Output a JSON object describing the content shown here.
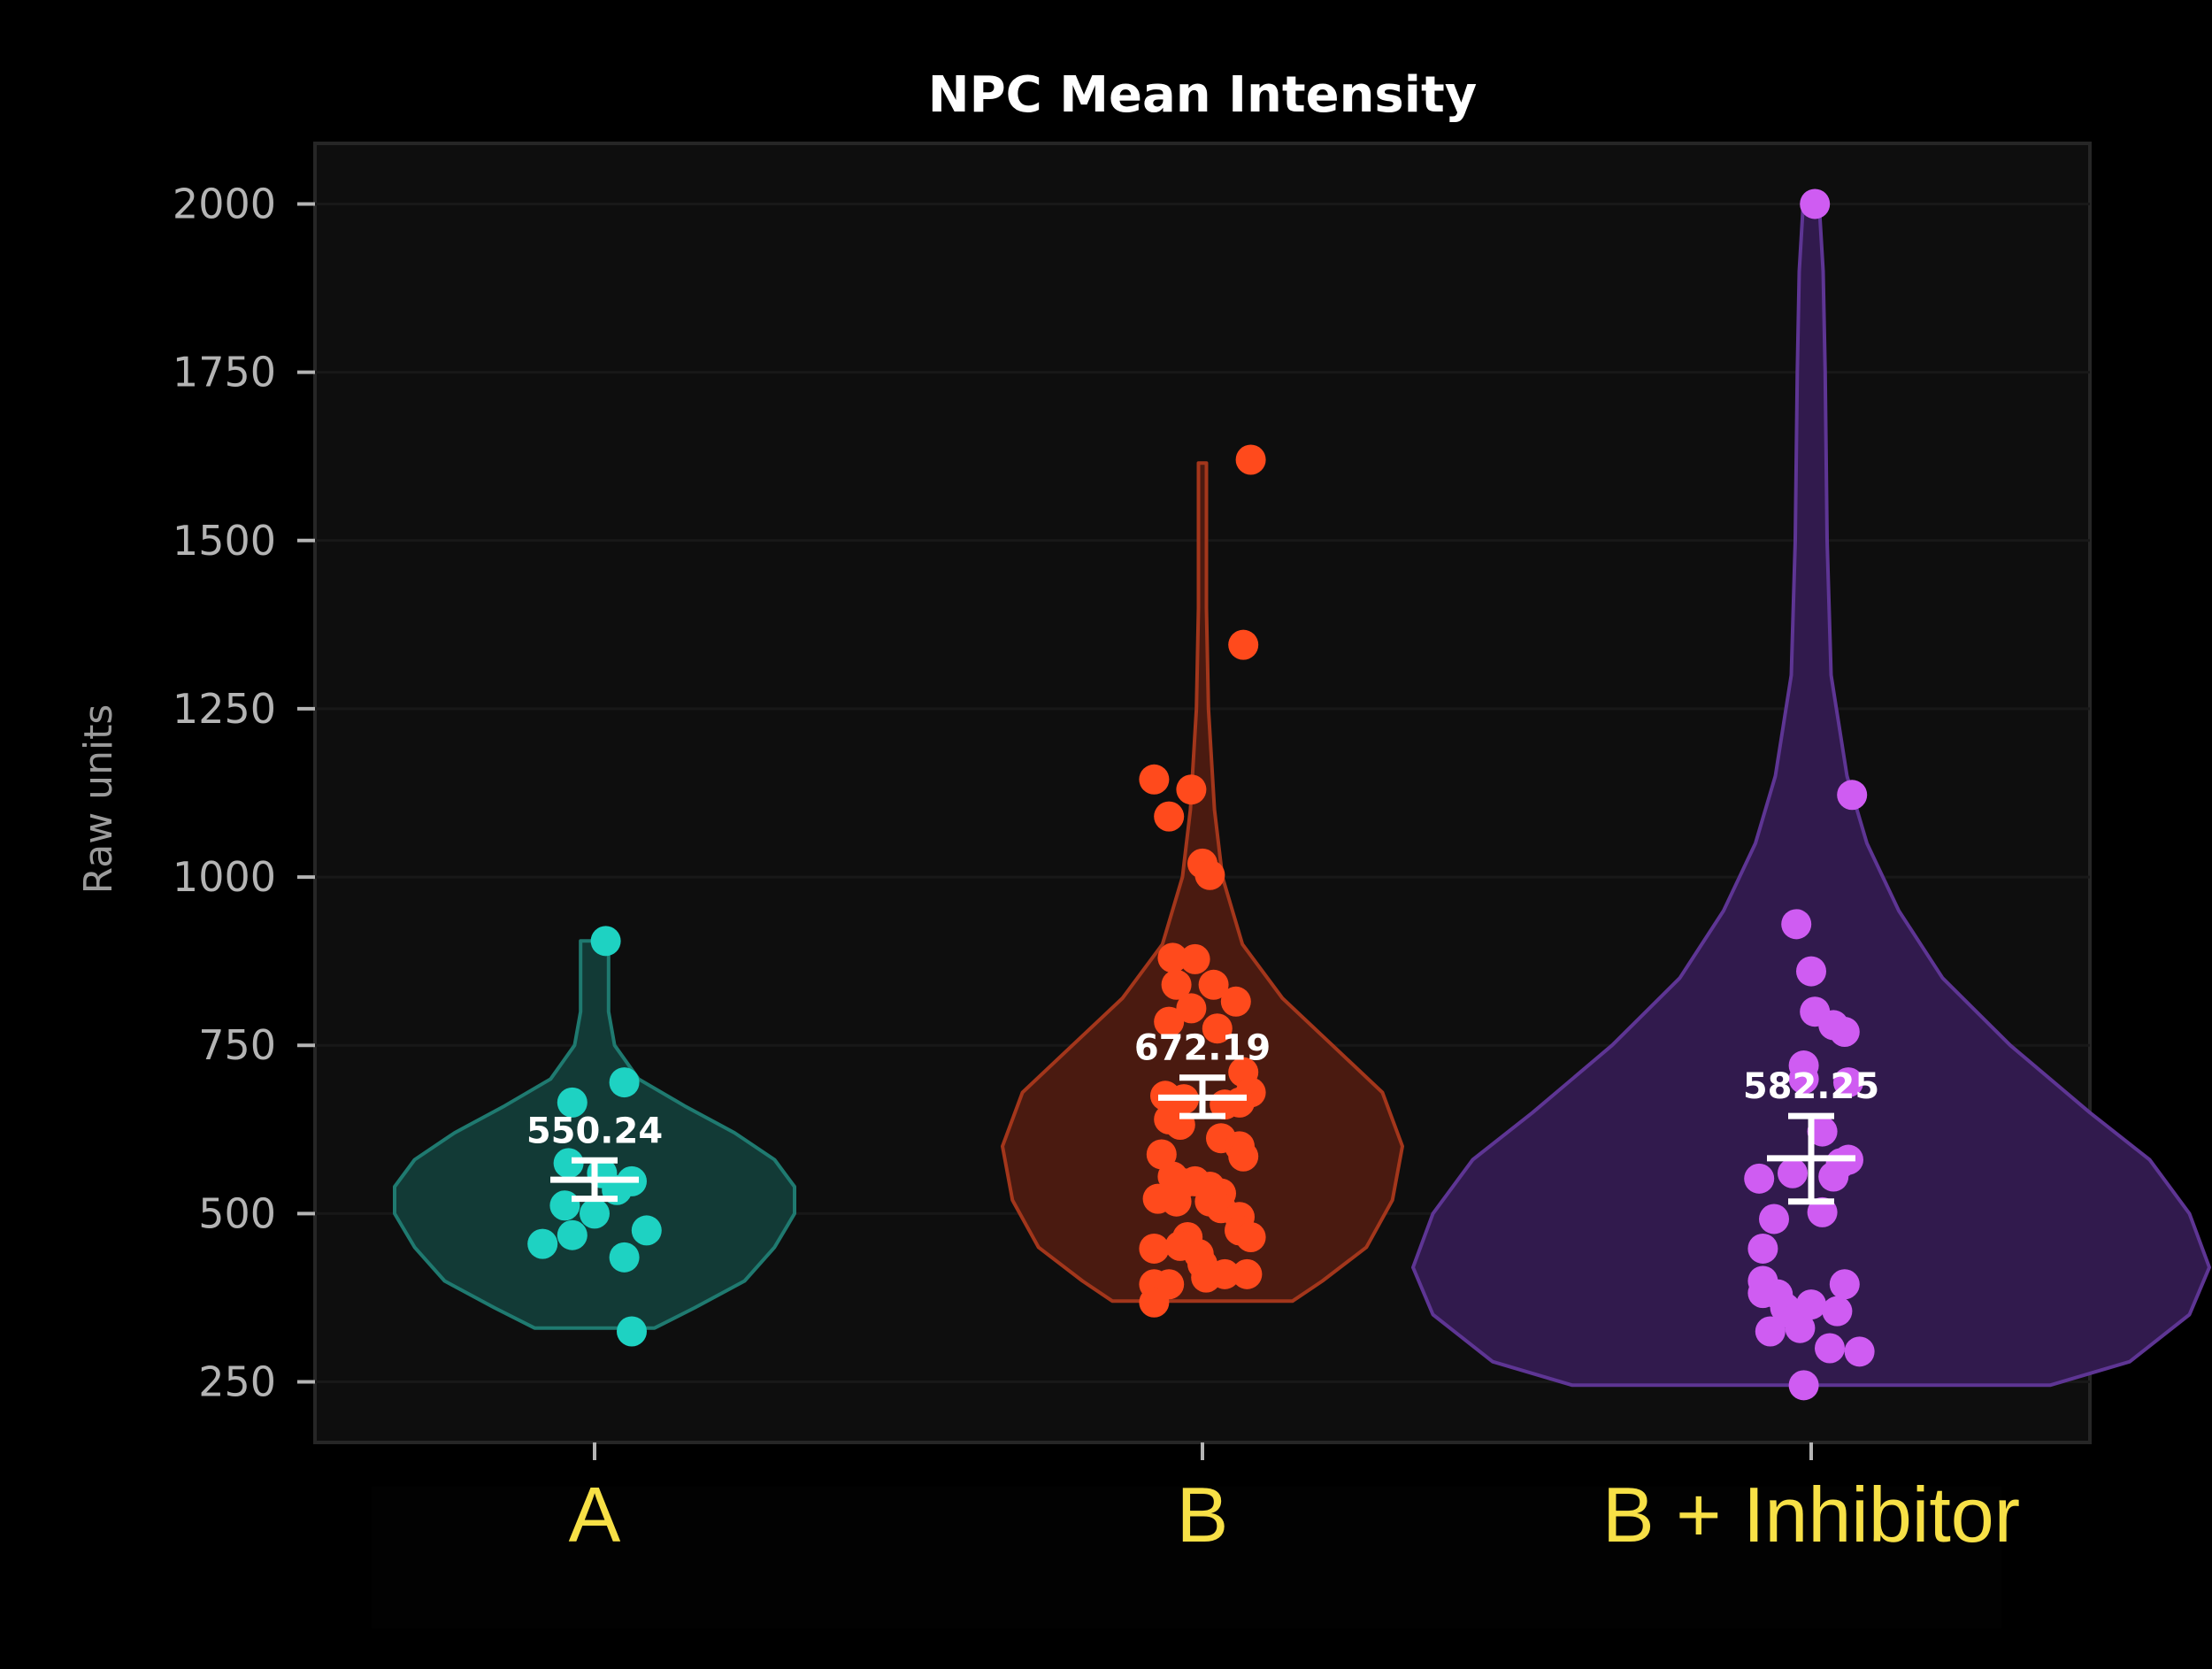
{
  "chart_data": {
    "type": "violin",
    "title": "NPC Mean Intensity",
    "xlabel": "",
    "ylabel": "Raw units",
    "ylim": [
      160,
      2090
    ],
    "yticks": [
      250,
      500,
      750,
      1000,
      1250,
      1500,
      1750,
      2000
    ],
    "ytick_labels": [
      "250",
      "500",
      "750",
      "1000",
      "1250",
      "1500",
      "1750",
      "2000"
    ],
    "categories": [
      "A",
      "B",
      "B + Inhibitor"
    ],
    "series": [
      {
        "name": "A",
        "color": "#1ed2c2",
        "fill": "#123a36",
        "edge": "#1f7a70",
        "mean": 550.24,
        "mean_label": "550.24",
        "sem": [
          522,
          579
        ],
        "range": [
          330,
          905
        ],
        "density": [
          [
            330,
            0.3
          ],
          [
            360,
            0.5
          ],
          [
            400,
            0.75
          ],
          [
            450,
            0.9
          ],
          [
            500,
            1.0
          ],
          [
            540,
            1.0
          ],
          [
            580,
            0.9
          ],
          [
            620,
            0.7
          ],
          [
            660,
            0.45
          ],
          [
            700,
            0.22
          ],
          [
            750,
            0.1
          ],
          [
            800,
            0.07
          ],
          [
            860,
            0.07
          ],
          [
            905,
            0.07
          ]
        ],
        "points": [
          [
            0.03,
            905
          ],
          [
            0.08,
            695
          ],
          [
            -0.06,
            665
          ],
          [
            -0.07,
            575
          ],
          [
            0.02,
            560
          ],
          [
            0.1,
            548
          ],
          [
            0.06,
            535
          ],
          [
            -0.08,
            512
          ],
          [
            0.0,
            500
          ],
          [
            0.14,
            475
          ],
          [
            -0.06,
            468
          ],
          [
            -0.14,
            455
          ],
          [
            0.08,
            435
          ],
          [
            0.1,
            325
          ]
        ]
      },
      {
        "name": "B",
        "color": "#ff4a1c",
        "fill": "#4a1a10",
        "edge": "#a3361b",
        "mean": 672.19,
        "mean_label": "672.19",
        "sem": [
          645,
          702
        ],
        "range": [
          370,
          1615
        ],
        "density": [
          [
            370,
            0.45
          ],
          [
            400,
            0.6
          ],
          [
            450,
            0.82
          ],
          [
            520,
            0.95
          ],
          [
            600,
            1.0
          ],
          [
            680,
            0.9
          ],
          [
            750,
            0.65
          ],
          [
            820,
            0.4
          ],
          [
            900,
            0.2
          ],
          [
            1000,
            0.1
          ],
          [
            1100,
            0.06
          ],
          [
            1250,
            0.03
          ],
          [
            1400,
            0.02
          ],
          [
            1615,
            0.02
          ]
        ],
        "points": [
          [
            0.13,
            1620
          ],
          [
            0.11,
            1345
          ],
          [
            -0.13,
            1145
          ],
          [
            -0.03,
            1130
          ],
          [
            -0.09,
            1090
          ],
          [
            0.0,
            1020
          ],
          [
            0.02,
            1003
          ],
          [
            -0.08,
            880
          ],
          [
            -0.02,
            878
          ],
          [
            0.03,
            840
          ],
          [
            0.09,
            815
          ],
          [
            -0.07,
            840
          ],
          [
            -0.03,
            805
          ],
          [
            -0.09,
            785
          ],
          [
            0.04,
            775
          ],
          [
            0.11,
            710
          ],
          [
            0.13,
            680
          ],
          [
            0.1,
            665
          ],
          [
            0.06,
            662
          ],
          [
            -0.1,
            675
          ],
          [
            -0.05,
            670
          ],
          [
            -0.09,
            640
          ],
          [
            -0.06,
            632
          ],
          [
            0.05,
            612
          ],
          [
            0.1,
            600
          ],
          [
            0.11,
            585
          ],
          [
            -0.11,
            588
          ],
          [
            -0.08,
            555
          ],
          [
            -0.05,
            545
          ],
          [
            -0.02,
            548
          ],
          [
            0.02,
            540
          ],
          [
            0.05,
            530
          ],
          [
            -0.12,
            522
          ],
          [
            -0.07,
            518
          ],
          [
            0.02,
            518
          ],
          [
            0.05,
            508
          ],
          [
            0.1,
            495
          ],
          [
            0.1,
            475
          ],
          [
            0.13,
            465
          ],
          [
            0.12,
            410
          ],
          [
            0.06,
            410
          ],
          [
            -0.04,
            465
          ],
          [
            -0.06,
            452
          ],
          [
            -0.13,
            448
          ],
          [
            -0.01,
            440
          ],
          [
            0.0,
            425
          ],
          [
            -0.13,
            395
          ],
          [
            -0.09,
            395
          ],
          [
            -0.13,
            368
          ],
          [
            0.01,
            405
          ]
        ]
      },
      {
        "name": "B + Inhibitor",
        "color": "#cf5cf2",
        "fill": "#311a4d",
        "edge": "#5e3594",
        "mean": 582.25,
        "mean_label": "582.25",
        "sem": [
          518,
          645
        ],
        "range": [
          245,
          2000
        ],
        "density": [
          [
            245,
            0.6
          ],
          [
            280,
            0.8
          ],
          [
            350,
            0.95
          ],
          [
            420,
            1.0
          ],
          [
            500,
            0.95
          ],
          [
            580,
            0.85
          ],
          [
            650,
            0.7
          ],
          [
            750,
            0.5
          ],
          [
            850,
            0.33
          ],
          [
            950,
            0.22
          ],
          [
            1050,
            0.14
          ],
          [
            1150,
            0.09
          ],
          [
            1300,
            0.05
          ],
          [
            1500,
            0.04
          ],
          [
            1750,
            0.035
          ],
          [
            1900,
            0.03
          ],
          [
            2000,
            0.02
          ]
        ],
        "points": [
          [
            0.01,
            2000
          ],
          [
            0.11,
            1122
          ],
          [
            -0.04,
            930
          ],
          [
            0.0,
            860
          ],
          [
            0.01,
            800
          ],
          [
            0.06,
            780
          ],
          [
            0.09,
            770
          ],
          [
            -0.02,
            720
          ],
          [
            0.1,
            695
          ],
          [
            -0.02,
            700
          ],
          [
            0.03,
            622
          ],
          [
            0.08,
            575
          ],
          [
            0.1,
            580
          ],
          [
            0.06,
            555
          ],
          [
            -0.05,
            560
          ],
          [
            -0.14,
            552
          ],
          [
            -0.1,
            492
          ],
          [
            0.03,
            502
          ],
          [
            -0.13,
            448
          ],
          [
            -0.13,
            400
          ],
          [
            -0.13,
            382
          ],
          [
            -0.09,
            380
          ],
          [
            -0.07,
            360
          ],
          [
            -0.04,
            345
          ],
          [
            -0.03,
            330
          ],
          [
            -0.11,
            325
          ],
          [
            0.0,
            365
          ],
          [
            0.07,
            355
          ],
          [
            0.09,
            395
          ],
          [
            0.13,
            295
          ],
          [
            0.05,
            300
          ],
          [
            -0.02,
            245
          ]
        ]
      }
    ]
  }
}
